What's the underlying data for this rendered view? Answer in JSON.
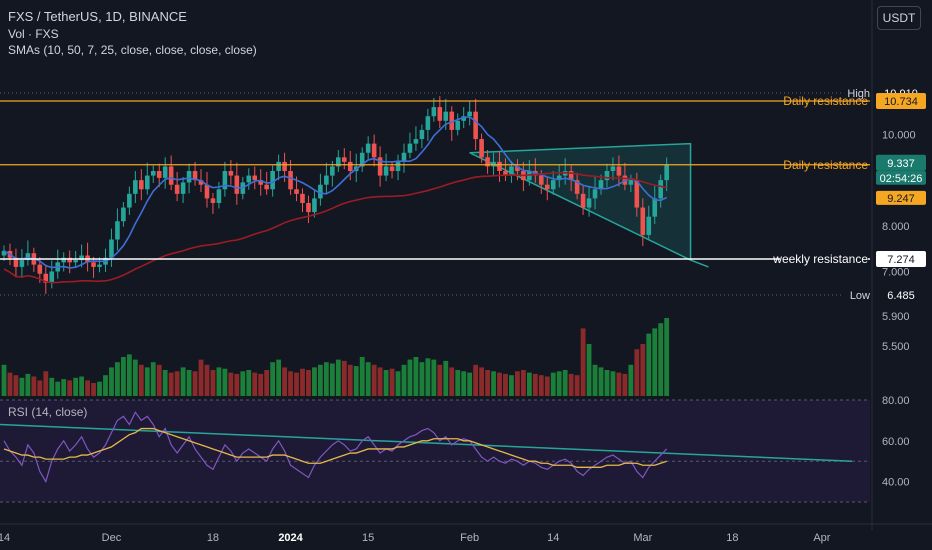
{
  "legend": {
    "title": "FXS / TetherUS, 1D, BINANCE",
    "volume": "Vol · FXS",
    "sma": "SMAs (10, 50, 7, 25, close, close, close, close)",
    "rsi": "RSI (14, close)"
  },
  "currency_button": "USDT",
  "chart_data": {
    "type": "candlestick",
    "ylim": [
      6.2,
      11.5
    ],
    "price_ticks": [
      "10.000",
      "8.000",
      "7.000"
    ],
    "price_tick_values": [
      10.0,
      8.0,
      7.0
    ],
    "volume_ticks": [
      "5.900",
      "5.500"
    ],
    "volume_tick_values": [
      5.9,
      5.5
    ],
    "rsi_ticks": [
      "80.00",
      "60.00",
      "40.00"
    ],
    "rsi_tick_values": [
      80,
      60,
      40
    ],
    "x_ticks": [
      "14",
      "Dec",
      "18",
      "2024",
      "15",
      "Feb",
      "14",
      "Mar",
      "18",
      "Apr"
    ],
    "x_tick_index": [
      0,
      18,
      35,
      48,
      61,
      78,
      92,
      107,
      122,
      137
    ],
    "levels": [
      {
        "label": "High",
        "value_text": "10.910",
        "value": 10.91,
        "kind": "high"
      },
      {
        "label": "Daily resistance",
        "value_text": "10.734",
        "value": 10.734,
        "kind": "resistance"
      },
      {
        "label": "Daily resistance",
        "value_text": "9.337",
        "value": 9.337,
        "kind": "current"
      },
      {
        "label": "",
        "value_text": "02:54:26",
        "value": 9.337,
        "kind": "countdown"
      },
      {
        "label": "",
        "value_text": "9.247",
        "value": 9.247,
        "kind": "sma"
      },
      {
        "label": "weekly resistance",
        "value_text": "7.274",
        "value": 7.274,
        "kind": "support"
      },
      {
        "label": "Low",
        "value_text": "6.485",
        "value": 6.485,
        "kind": "low"
      }
    ],
    "colors": {
      "up": "#26a69a",
      "down": "#ef5350",
      "vol_up": "#1b7f3a",
      "vol_down": "#8b2a2a",
      "sma_fast": "#3d6fd6",
      "sma_slow": "#9b1c24",
      "resistance": "#f5a623",
      "support": "#ffffff",
      "triangle": "#26a69a",
      "rsi": "#7e57c2",
      "rsi_ma": "#e6b84c",
      "rsi_trend": "#26a69a"
    },
    "closes": [
      7.45,
      7.3,
      7.1,
      7.25,
      7.4,
      7.15,
      6.95,
      6.75,
      7.0,
      7.2,
      7.3,
      7.2,
      7.25,
      7.35,
      7.2,
      7.1,
      7.15,
      7.3,
      7.7,
      8.1,
      8.4,
      8.7,
      9.0,
      8.8,
      9.1,
      9.2,
      9.05,
      9.3,
      8.9,
      8.7,
      8.95,
      9.2,
      9.0,
      8.9,
      8.6,
      8.5,
      8.8,
      9.2,
      9.1,
      8.7,
      8.95,
      9.1,
      9.0,
      8.9,
      8.8,
      9.2,
      9.4,
      9.2,
      8.8,
      8.7,
      8.5,
      8.3,
      8.6,
      8.9,
      9.1,
      9.3,
      9.5,
      9.4,
      9.2,
      9.3,
      9.6,
      9.8,
      9.5,
      9.1,
      9.3,
      9.2,
      9.4,
      9.6,
      9.8,
      9.9,
      10.1,
      10.4,
      10.6,
      10.3,
      10.5,
      10.1,
      10.3,
      10.4,
      10.5,
      9.9,
      9.5,
      9.3,
      9.4,
      9.2,
      9.1,
      9.3,
      9.2,
      9.0,
      9.2,
      9.1,
      8.9,
      8.8,
      9.0,
      9.1,
      9.2,
      9.0,
      8.7,
      8.4,
      8.6,
      8.8,
      9.0,
      9.2,
      9.3,
      9.1,
      8.9,
      9.0,
      8.4,
      7.8,
      8.2,
      8.6,
      9.0,
      9.337
    ],
    "volumes": [
      120,
      90,
      80,
      70,
      85,
      75,
      60,
      95,
      70,
      55,
      65,
      60,
      70,
      75,
      60,
      50,
      55,
      80,
      110,
      130,
      150,
      160,
      140,
      120,
      110,
      130,
      120,
      100,
      90,
      95,
      110,
      100,
      95,
      140,
      120,
      100,
      110,
      105,
      90,
      85,
      95,
      100,
      90,
      85,
      100,
      130,
      140,
      110,
      95,
      90,
      105,
      100,
      110,
      120,
      130,
      125,
      140,
      135,
      120,
      115,
      150,
      130,
      120,
      110,
      100,
      105,
      95,
      120,
      140,
      150,
      130,
      145,
      140,
      120,
      135,
      110,
      100,
      95,
      90,
      120,
      110,
      100,
      95,
      90,
      85,
      80,
      95,
      100,
      90,
      85,
      80,
      75,
      90,
      95,
      100,
      85,
      80,
      260,
      200,
      120,
      110,
      100,
      95,
      90,
      85,
      120,
      180,
      200,
      240,
      260,
      280,
      300
    ],
    "rsi": [
      60,
      55,
      52,
      48,
      58,
      54,
      45,
      40,
      50,
      56,
      60,
      55,
      58,
      62,
      56,
      52,
      54,
      58,
      64,
      70,
      72,
      68,
      74,
      70,
      72,
      68,
      62,
      66,
      58,
      54,
      58,
      62,
      56,
      52,
      48,
      46,
      52,
      58,
      55,
      50,
      54,
      56,
      54,
      52,
      50,
      56,
      60,
      55,
      48,
      46,
      44,
      42,
      48,
      52,
      55,
      58,
      60,
      58,
      55,
      56,
      60,
      62,
      58,
      54,
      56,
      55,
      58,
      60,
      62,
      63,
      65,
      66,
      64,
      60,
      62,
      58,
      60,
      61,
      60,
      56,
      52,
      50,
      52,
      50,
      49,
      51,
      50,
      48,
      50,
      49,
      47,
      46,
      48,
      50,
      51,
      49,
      45,
      43,
      46,
      48,
      50,
      52,
      53,
      51,
      49,
      50,
      45,
      42,
      47,
      50,
      53,
      56
    ],
    "rsi_ma": [
      56,
      55,
      54,
      53,
      53,
      52,
      52,
      51,
      51,
      51,
      51,
      52,
      52,
      53,
      53,
      54,
      55,
      56,
      57,
      59,
      61,
      63,
      64,
      66,
      66,
      66,
      65,
      64,
      63,
      62,
      61,
      60,
      59,
      58,
      57,
      56,
      55,
      54,
      53,
      52,
      52,
      52,
      52,
      52,
      52,
      53,
      53,
      53,
      52,
      51,
      50,
      49,
      49,
      49,
      50,
      51,
      52,
      53,
      54,
      54,
      55,
      56,
      56,
      56,
      56,
      56,
      57,
      57,
      58,
      59,
      60,
      60,
      61,
      61,
      61,
      61,
      61,
      60,
      60,
      59,
      58,
      57,
      56,
      55,
      54,
      53,
      52,
      51,
      50,
      50,
      49,
      49,
      48,
      48,
      48,
      48,
      47,
      47,
      47,
      47,
      47,
      48,
      48,
      48,
      49,
      49,
      49,
      48,
      48,
      48,
      49,
      50
    ]
  }
}
